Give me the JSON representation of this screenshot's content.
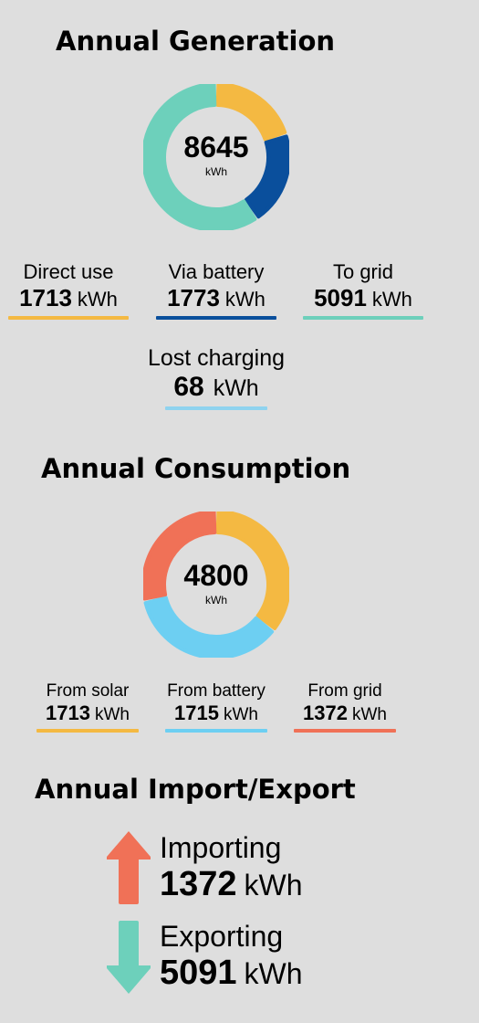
{
  "generation": {
    "title": "Annual Generation",
    "total": "8645",
    "unit": "kWh",
    "segments": [
      {
        "name": "Direct use",
        "value": 1713,
        "color": "#f4b942"
      },
      {
        "name": "Via battery",
        "value": 1773,
        "color": "#0a4f9c"
      },
      {
        "name": "To grid",
        "value": 5091,
        "color": "#6dd0bb"
      }
    ],
    "stats": [
      {
        "label": "Direct use",
        "value": "1713",
        "unit": "kWh",
        "color": "#f4b942"
      },
      {
        "label": "Via battery",
        "value": "1773",
        "unit": "kWh",
        "color": "#0a4f9c"
      },
      {
        "label": "To grid",
        "value": "5091",
        "unit": "kWh",
        "color": "#6dd0bb"
      },
      {
        "label": "Lost charging",
        "value": "68",
        "unit": "kWh",
        "color": "#8fd3ef"
      }
    ]
  },
  "consumption": {
    "title": "Annual Consumption",
    "total": "4800",
    "unit": "kWh",
    "segments": [
      {
        "name": "From solar",
        "value": 1713,
        "color": "#f4b942"
      },
      {
        "name": "From battery",
        "value": 1715,
        "color": "#6dcff2"
      },
      {
        "name": "From grid",
        "value": 1372,
        "color": "#f07157"
      }
    ],
    "stats": [
      {
        "label": "From solar",
        "value": "1713",
        "unit": "kWh",
        "color": "#f4b942"
      },
      {
        "label": "From battery",
        "value": "1715",
        "unit": "kWh",
        "color": "#6dcff2"
      },
      {
        "label": "From grid",
        "value": "1372",
        "unit": "kWh",
        "color": "#f07157"
      }
    ]
  },
  "import_export": {
    "title": "Annual Import/Export",
    "importing": {
      "label": "Importing",
      "value": "1372",
      "unit": "kWh",
      "color": "#f07157",
      "icon": "arrow-up-icon"
    },
    "exporting": {
      "label": "Exporting",
      "value": "5091",
      "unit": "kWh",
      "color": "#6dd0bb",
      "icon": "arrow-down-icon"
    }
  }
}
